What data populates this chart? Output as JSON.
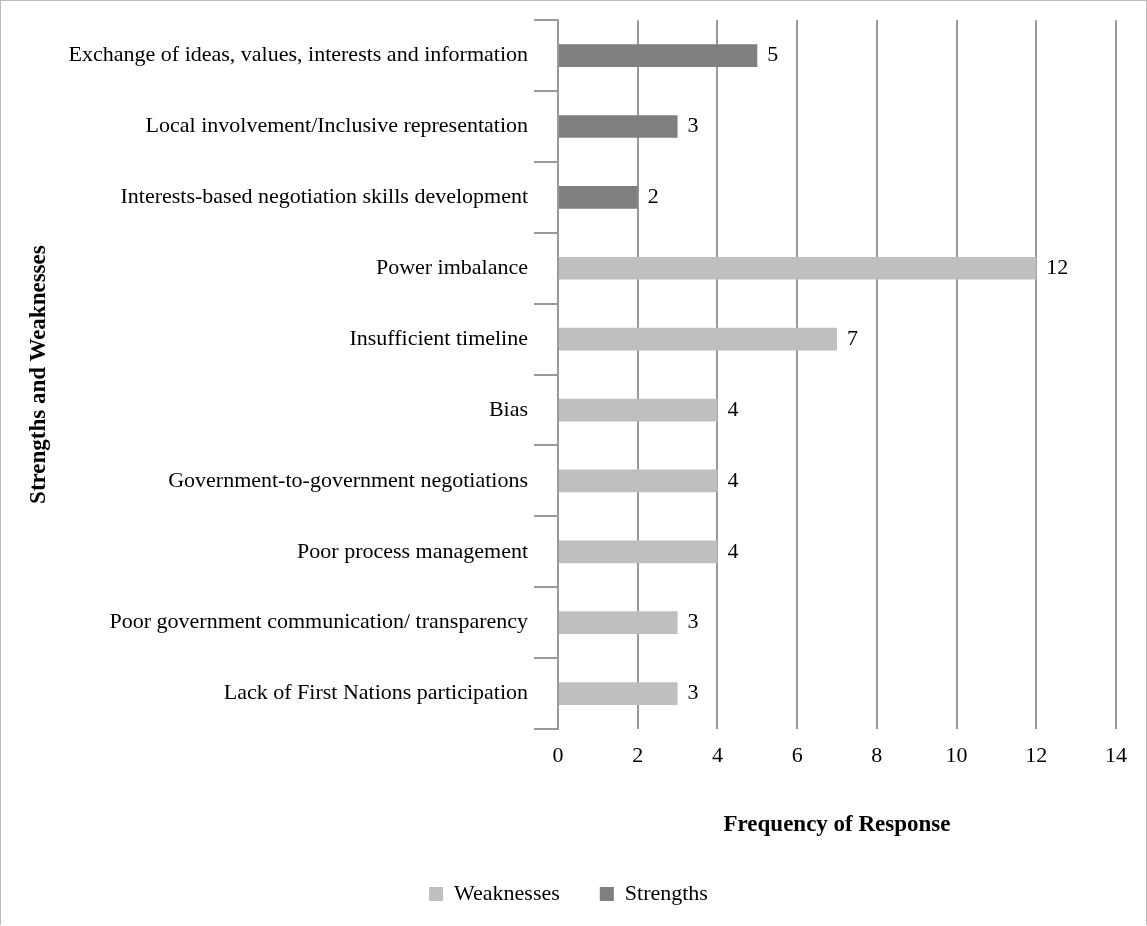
{
  "chart_data": {
    "type": "bar",
    "orientation": "horizontal",
    "stacked": true,
    "xlabel": "Frequency of Response",
    "ylabel": "Strengths and Weaknesses",
    "categories": [
      "Exchange of ideas, values, interests and information",
      "Local involvement/Inclusive representation",
      "Interests-based negotiation skills development",
      "Power imbalance",
      "Insufficient timeline",
      "Bias",
      "Government-to-government negotiations",
      "Poor process management",
      "Poor government communication/ transparency",
      "Lack of First Nations participation"
    ],
    "series": [
      {
        "name": "Weaknesses",
        "color": "#bfbfbf",
        "values": [
          null,
          null,
          null,
          12,
          7,
          4,
          4,
          4,
          3,
          3
        ]
      },
      {
        "name": "Strengths",
        "color": "#7f7f7f",
        "values": [
          5,
          3,
          2,
          null,
          null,
          null,
          null,
          null,
          null,
          null
        ]
      }
    ],
    "xlim": [
      0,
      14
    ],
    "xticks": [
      0,
      2,
      4,
      6,
      8,
      10,
      12,
      14
    ],
    "grid": "x",
    "legend": "bottom",
    "data_labels": true
  }
}
